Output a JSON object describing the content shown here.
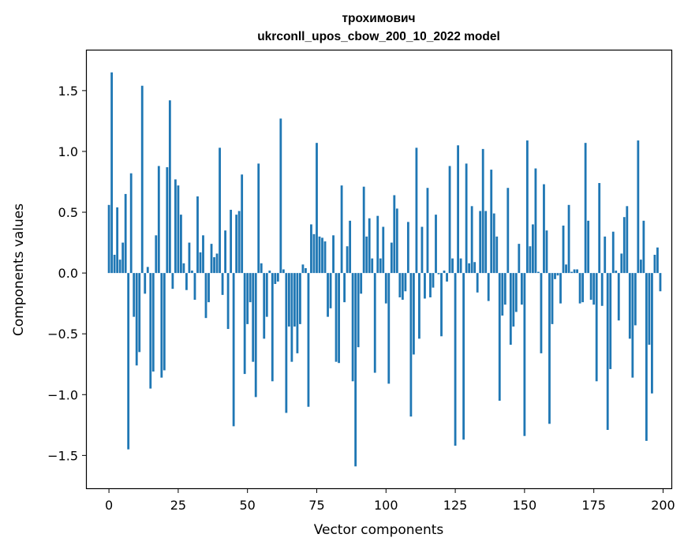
{
  "chart_data": {
    "type": "bar",
    "title": "трохимович",
    "subtitle": "ukrconll_upos_cbow_200_10_2022 model",
    "xlabel": "Vector components",
    "ylabel": "Components values",
    "xlim": [
      -8,
      203
    ],
    "ylim": [
      -1.77,
      1.83
    ],
    "xticks": [
      0,
      25,
      50,
      75,
      100,
      125,
      150,
      175,
      200
    ],
    "xtick_labels": [
      "0",
      "25",
      "50",
      "75",
      "100",
      "125",
      "150",
      "175",
      "200"
    ],
    "yticks": [
      -1.5,
      -1.0,
      -0.5,
      0.0,
      0.5,
      1.0,
      1.5
    ],
    "ytick_labels": [
      "−1.5",
      "−1.0",
      "−0.5",
      "0.0",
      "0.5",
      "1.0",
      "1.5"
    ],
    "bar_color": "#1f77b4",
    "grid": false,
    "x": [
      0,
      1,
      2,
      3,
      4,
      5,
      6,
      7,
      8,
      9,
      10,
      11,
      12,
      13,
      14,
      15,
      16,
      17,
      18,
      19,
      20,
      21,
      22,
      23,
      24,
      25,
      26,
      27,
      28,
      29,
      30,
      31,
      32,
      33,
      34,
      35,
      36,
      37,
      38,
      39,
      40,
      41,
      42,
      43,
      44,
      45,
      46,
      47,
      48,
      49,
      50,
      51,
      52,
      53,
      54,
      55,
      56,
      57,
      58,
      59,
      60,
      61,
      62,
      63,
      64,
      65,
      66,
      67,
      68,
      69,
      70,
      71,
      72,
      73,
      74,
      75,
      76,
      77,
      78,
      79,
      80,
      81,
      82,
      83,
      84,
      85,
      86,
      87,
      88,
      89,
      90,
      91,
      92,
      93,
      94,
      95,
      96,
      97,
      98,
      99,
      100,
      101,
      102,
      103,
      104,
      105,
      106,
      107,
      108,
      109,
      110,
      111,
      112,
      113,
      114,
      115,
      116,
      117,
      118,
      119,
      120,
      121,
      122,
      123,
      124,
      125,
      126,
      127,
      128,
      129,
      130,
      131,
      132,
      133,
      134,
      135,
      136,
      137,
      138,
      139,
      140,
      141,
      142,
      143,
      144,
      145,
      146,
      147,
      148,
      149,
      150,
      151,
      152,
      153,
      154,
      155,
      156,
      157,
      158,
      159,
      160,
      161,
      162,
      163,
      164,
      165,
      166,
      167,
      168,
      169,
      170,
      171,
      172,
      173,
      174,
      175,
      176,
      177,
      178,
      179,
      180,
      181,
      182,
      183,
      184,
      185,
      186,
      187,
      188,
      189,
      190,
      191,
      192,
      193,
      194,
      195,
      196,
      197,
      198,
      199
    ],
    "values": [
      0.56,
      1.65,
      0.15,
      0.54,
      0.11,
      0.25,
      0.65,
      -1.45,
      0.82,
      -0.36,
      -0.76,
      -0.65,
      1.54,
      -0.17,
      0.05,
      -0.95,
      -0.81,
      0.31,
      0.88,
      -0.86,
      -0.8,
      0.87,
      1.42,
      -0.13,
      0.77,
      0.72,
      0.48,
      0.08,
      -0.14,
      0.25,
      0.02,
      -0.22,
      0.63,
      0.17,
      0.31,
      -0.37,
      -0.24,
      0.24,
      0.13,
      0.16,
      1.03,
      -0.18,
      0.35,
      -0.46,
      0.52,
      -1.26,
      0.48,
      0.51,
      0.81,
      -0.83,
      -0.42,
      -0.24,
      -0.73,
      -1.02,
      0.9,
      0.08,
      -0.54,
      -0.36,
      0.02,
      -0.89,
      -0.09,
      -0.07,
      1.27,
      0.03,
      -1.15,
      -0.44,
      -0.73,
      -0.44,
      -0.66,
      -0.42,
      0.07,
      0.04,
      -1.1,
      0.4,
      0.32,
      1.07,
      0.3,
      0.29,
      0.26,
      -0.36,
      -0.29,
      0.31,
      -0.73,
      -0.74,
      0.72,
      -0.24,
      0.22,
      0.43,
      -0.89,
      -1.59,
      -0.61,
      -0.17,
      0.71,
      0.3,
      0.45,
      0.12,
      -0.82,
      0.47,
      0.12,
      0.38,
      -0.25,
      -0.91,
      0.25,
      0.64,
      0.53,
      -0.2,
      -0.22,
      -0.15,
      0.42,
      -1.18,
      -0.67,
      1.03,
      -0.54,
      0.38,
      -0.21,
      0.7,
      -0.2,
      -0.12,
      0.48,
      -0.01,
      -0.52,
      0.02,
      -0.07,
      0.88,
      0.12,
      -1.42,
      1.05,
      0.12,
      -1.37,
      0.9,
      0.08,
      0.55,
      0.09,
      -0.16,
      0.51,
      1.02,
      0.51,
      -0.23,
      0.85,
      0.49,
      0.3,
      -1.05,
      -0.35,
      -0.26,
      0.7,
      -0.59,
      -0.44,
      -0.32,
      0.24,
      -0.26,
      -1.34,
      1.09,
      0.22,
      0.4,
      0.86,
      0.01,
      -0.66,
      0.73,
      0.35,
      -1.24,
      -0.42,
      -0.05,
      -0.02,
      -0.25,
      0.39,
      0.07,
      0.56,
      0.01,
      0.03,
      0.03,
      -0.25,
      -0.24,
      1.07,
      0.43,
      -0.22,
      -0.26,
      -0.89,
      0.74,
      -0.27,
      0.3,
      -1.29,
      -0.79,
      0.34,
      0.02,
      -0.39,
      0.16,
      0.46,
      0.55,
      -0.54,
      -0.86,
      -0.43,
      1.09,
      0.11,
      0.43,
      -1.38,
      -0.59,
      -0.99,
      0.15,
      0.21,
      -0.15
    ]
  }
}
